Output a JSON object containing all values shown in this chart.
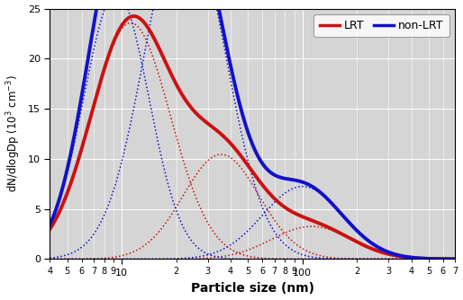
{
  "title": "",
  "xlabel": "Particle size (nm)",
  "ylabel": "dN/dlogDp (10$^3$ cm$^{-3}$)",
  "xlim": [
    4,
    700
  ],
  "ylim": [
    0,
    25
  ],
  "yticks": [
    0,
    5,
    10,
    15,
    20,
    25
  ],
  "background_color": "#d5d5d5",
  "lrt_color": "#cc1111",
  "nonlrt_color": "#1111cc",
  "lrt_linewidth": 2.8,
  "nonlrt_linewidth": 2.8,
  "dashed_linewidth": 1.1,
  "legend_labels": [
    "LRT",
    "non-LRT"
  ],
  "lognormal_params": {
    "lrt_modes": [
      {
        "N": 13000,
        "mu_log10": 1.05,
        "sigma_log10": 0.22
      },
      {
        "N": 5500,
        "mu_log10": 1.55,
        "sigma_log10": 0.21
      },
      {
        "N": 1800,
        "mu_log10": 2.05,
        "sigma_log10": 0.22
      }
    ],
    "nonlrt_modes": [
      {
        "N": 12000,
        "mu_log10": 0.97,
        "sigma_log10": 0.18
      },
      {
        "N": 19000,
        "mu_log10": 1.35,
        "sigma_log10": 0.22
      },
      {
        "N": 4000,
        "mu_log10": 2.0,
        "sigma_log10": 0.22
      }
    ]
  }
}
